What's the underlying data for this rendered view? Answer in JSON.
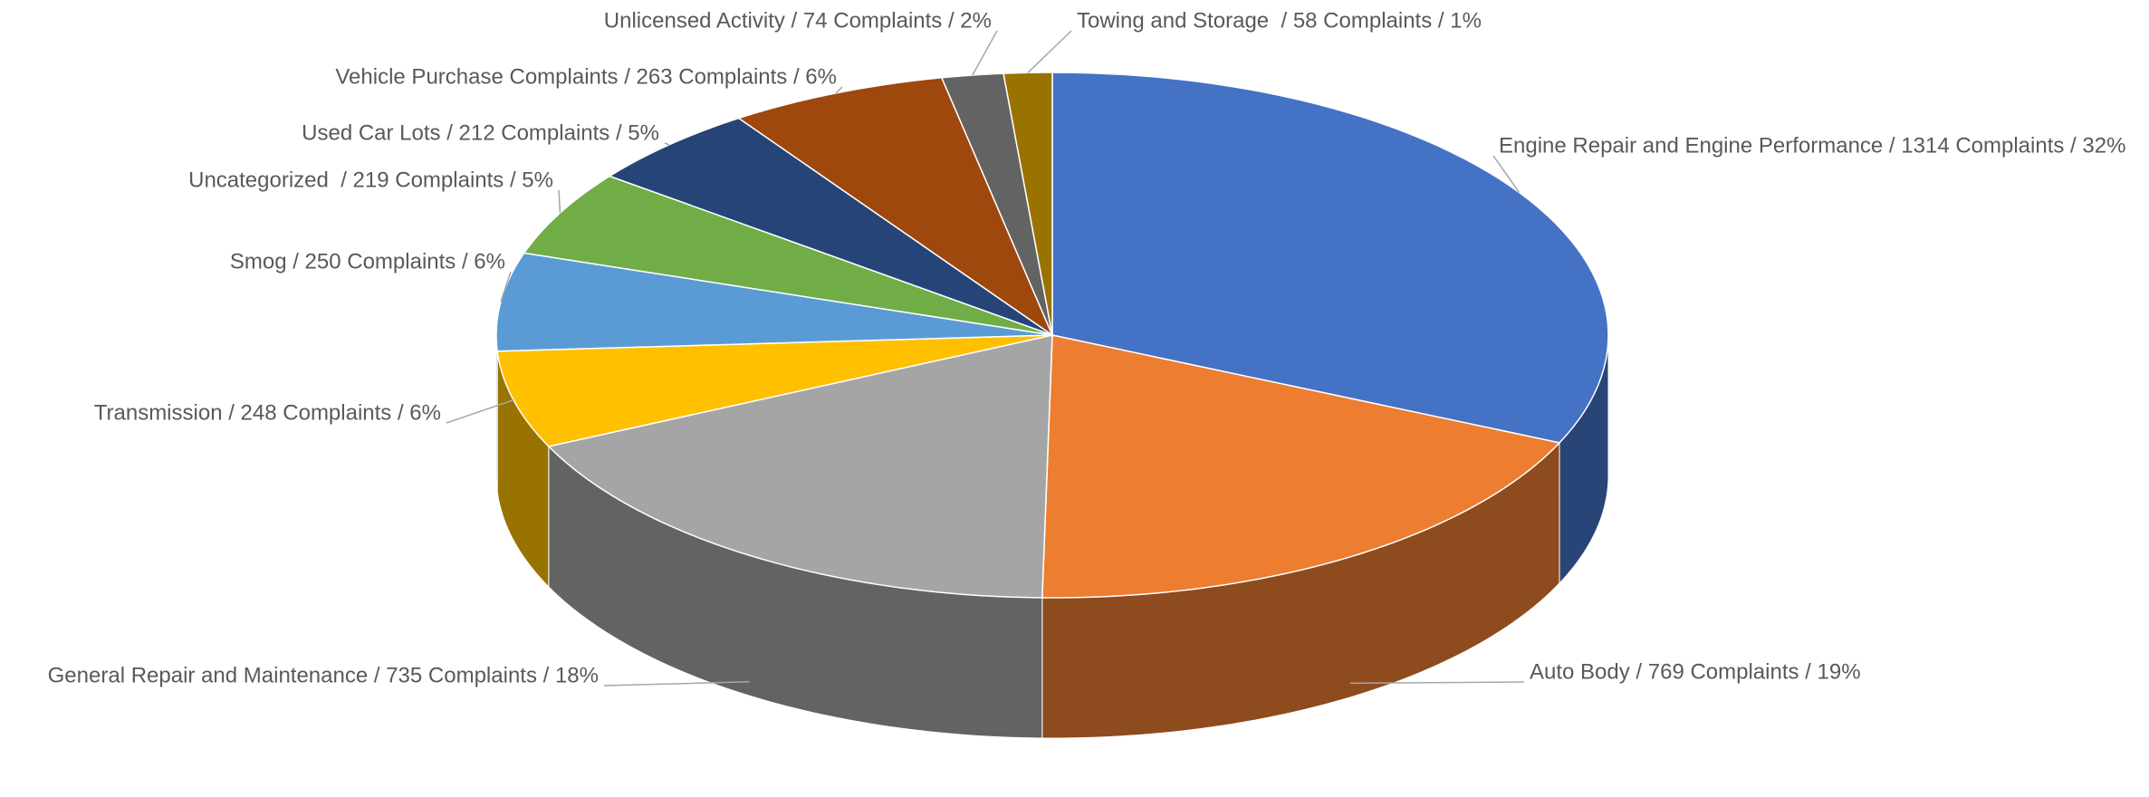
{
  "chart_data": {
    "type": "pie3d",
    "categories": [
      "Engine Repair and Engine Performance",
      "Auto Body",
      "General Repair and Maintenance",
      "Transmission",
      "Smog",
      "Uncategorized",
      "Used Car Lots",
      "Vehicle Purchase Complaints",
      "Unlicensed Activity",
      "Towing and Storage"
    ],
    "values": [
      1314,
      769,
      735,
      248,
      250,
      219,
      212,
      263,
      74,
      58
    ],
    "value_labels": [
      "Engine Repair and Engine Performance / 1314 Complaints / 32%",
      "Auto Body / 769 Complaints / 19%",
      "General Repair and Maintenance / 735 Complaints / 18%",
      "Transmission / 248 Complaints / 6%",
      "Smog / 250 Complaints / 6%",
      "Uncategorized  / 219 Complaints / 5%",
      "Used Car Lots / 212 Complaints / 5%",
      "Vehicle Purchase Complaints / 263 Complaints / 6%",
      "Unlicensed Activity / 74 Complaints / 2%",
      "Towing and Storage  / 58 Complaints / 1%"
    ],
    "colors": [
      "#4472c4",
      "#ed7d31",
      "#a5a5a5",
      "#ffc000",
      "#5b9bd5",
      "#70ad47",
      "#264478",
      "#9e480e",
      "#636363",
      "#997300"
    ]
  }
}
